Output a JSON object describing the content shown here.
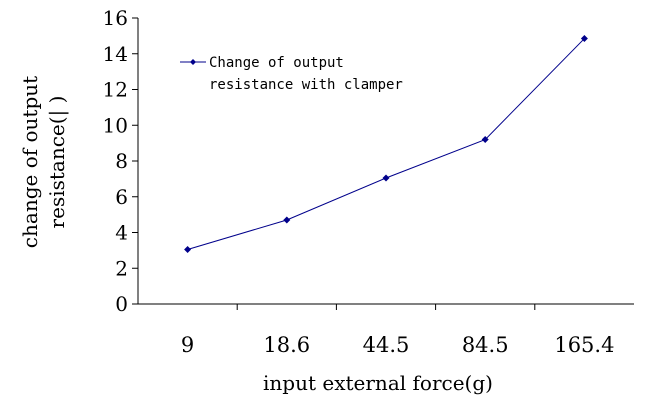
{
  "chart_data": {
    "type": "line",
    "categories": [
      "9",
      "18.6",
      "44.5",
      "84.5",
      "165.4"
    ],
    "series": [
      {
        "name": "Change of output resistance with clamper",
        "values": [
          3.05,
          4.7,
          7.05,
          9.2,
          14.85
        ],
        "color": "#00008B"
      }
    ],
    "ylim": [
      0,
      16
    ],
    "yticks": [
      0,
      2,
      4,
      6,
      8,
      10,
      12,
      14,
      16
    ],
    "xlabel": "input external force(g)",
    "ylabel_lines": [
      "change of output",
      "resistance(| )"
    ],
    "legend": {
      "lines": [
        "Change of output",
        "resistance with clamper"
      ],
      "position": "top-left"
    },
    "grid": false
  }
}
